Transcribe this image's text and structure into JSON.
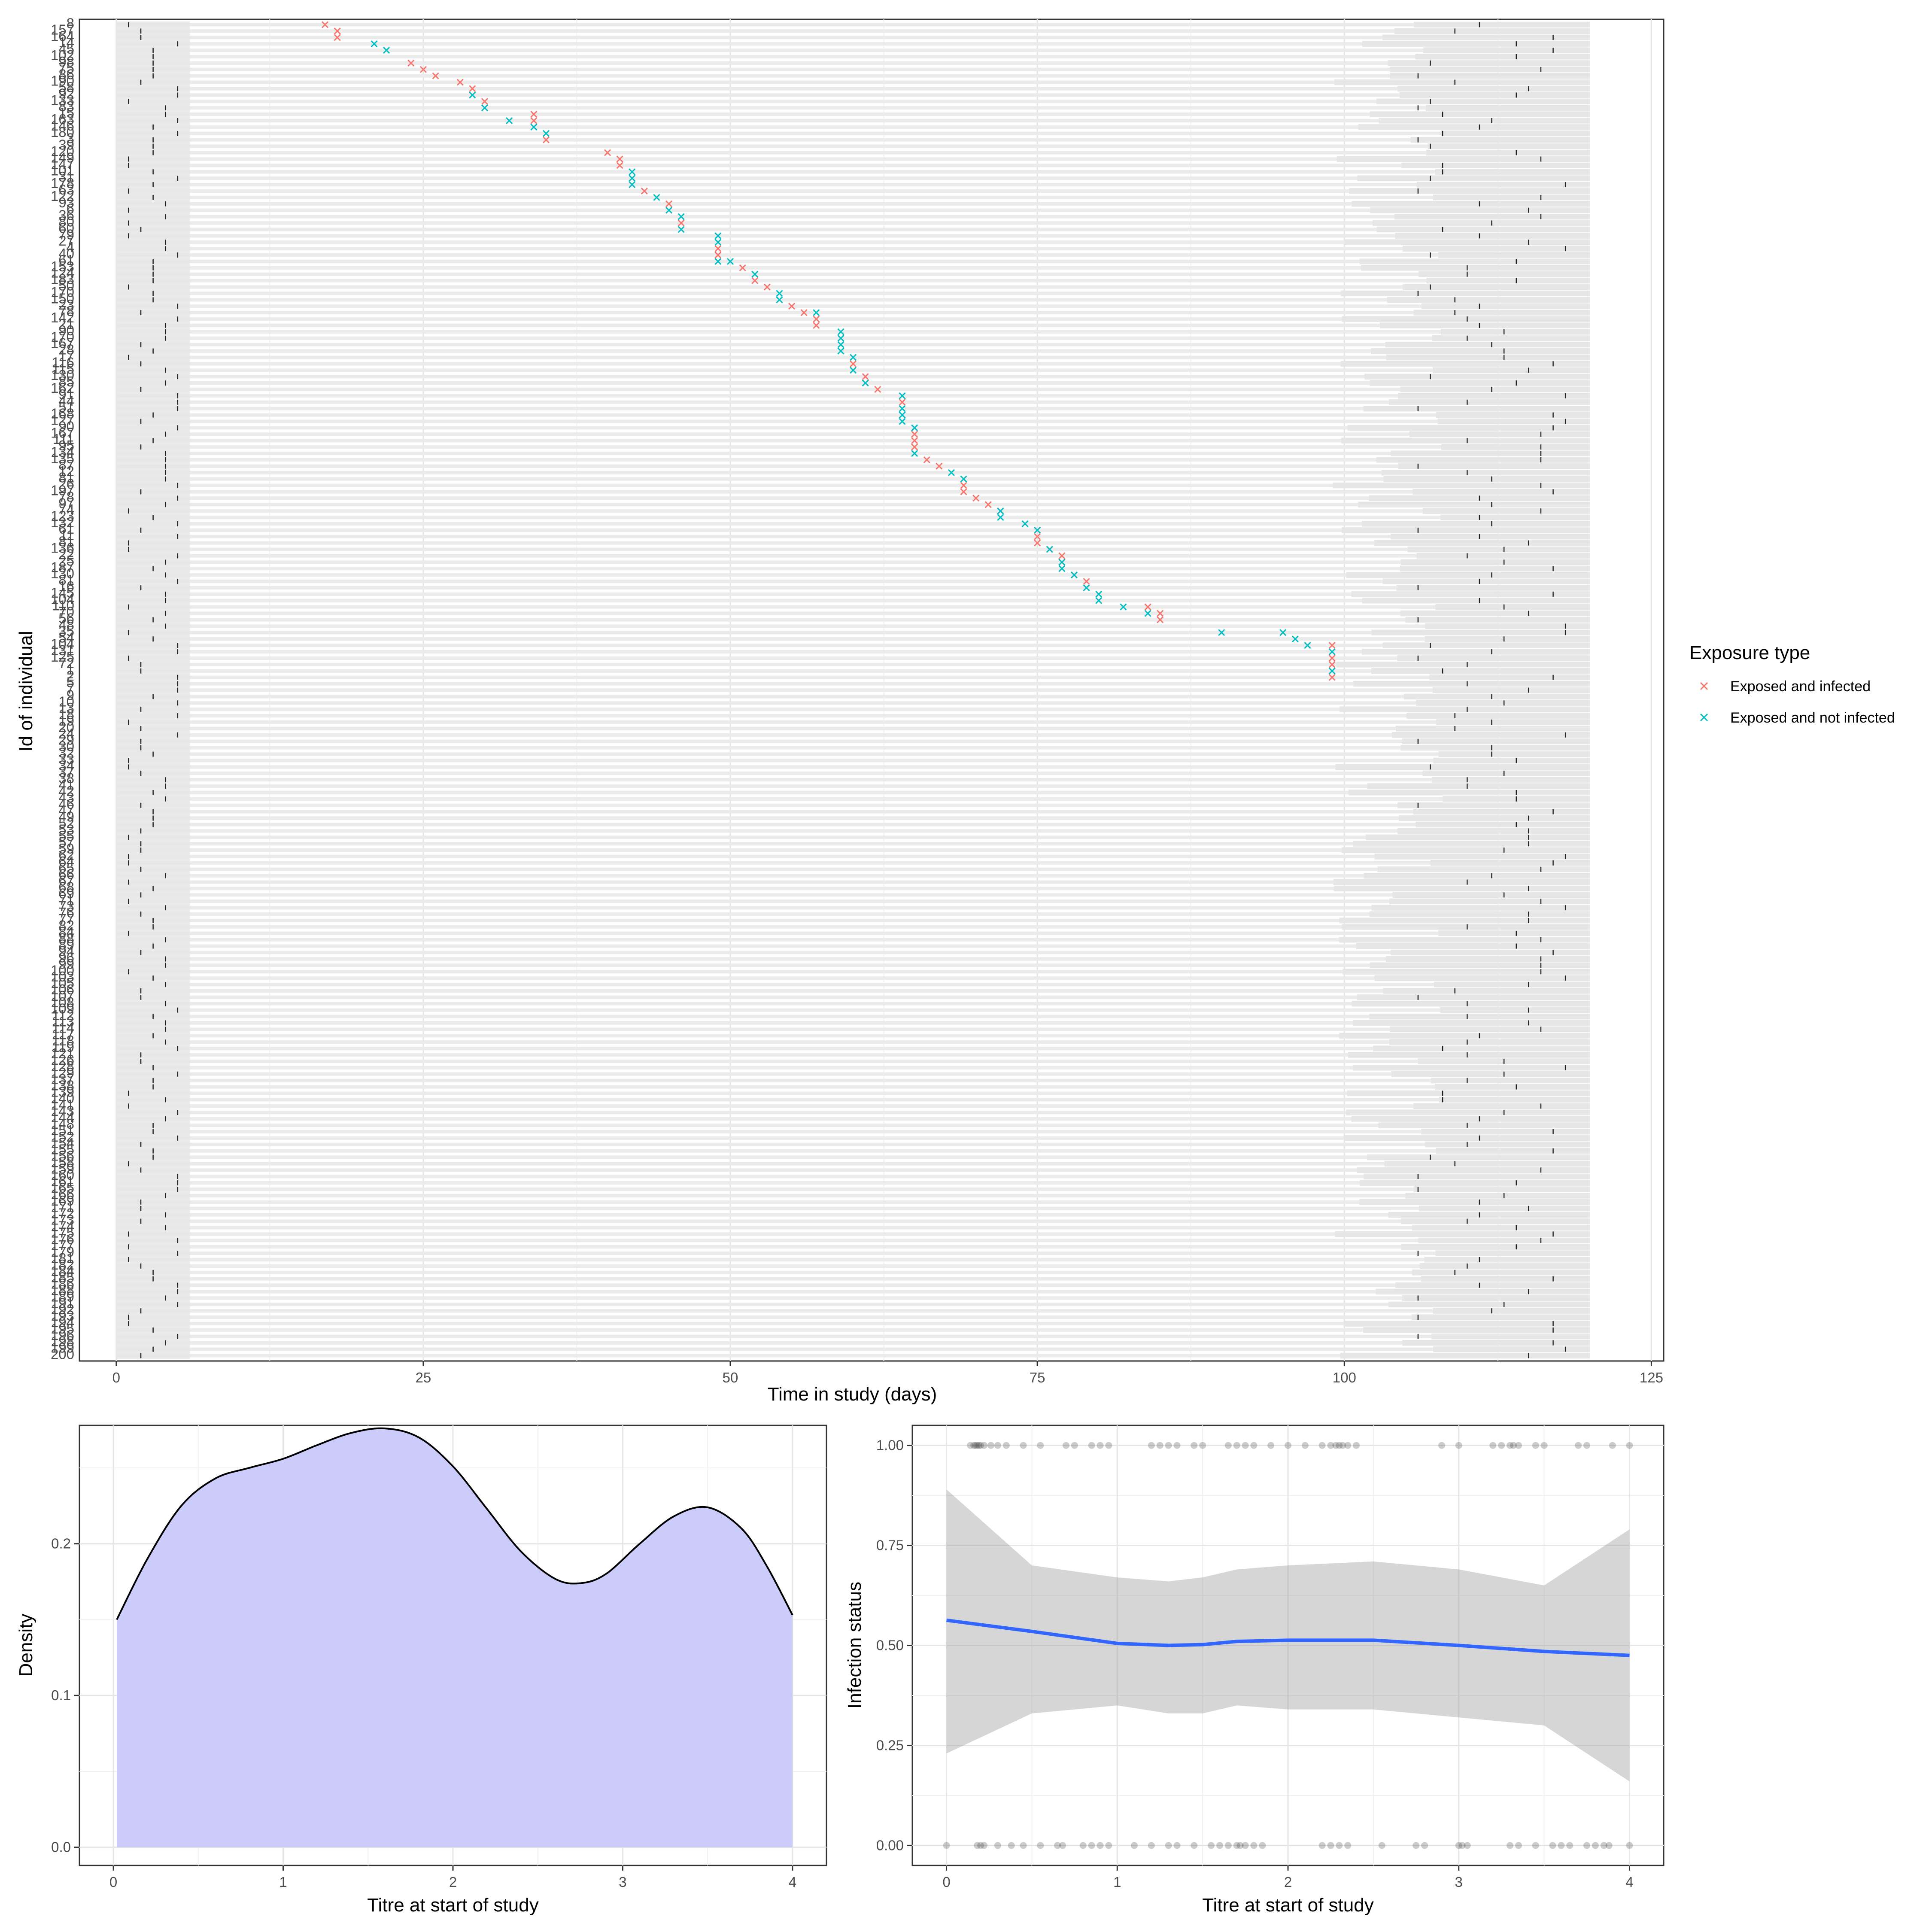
{
  "chart_data": [
    {
      "type": "scatter",
      "title": "",
      "xlabel": "Time in study (days)",
      "ylabel": "Id of individual",
      "xlim": [
        -3,
        126
      ],
      "x_ticks": [
        "0",
        "25",
        "50",
        "75",
        "100",
        "125"
      ],
      "background_band_days": {
        "enrolment_start": 0,
        "enrolment_end_typical": 6,
        "followup_start_min": 99,
        "study_end": 120
      },
      "individual_ids": [
        "8",
        "157",
        "164",
        "14",
        "45",
        "102",
        "98",
        "75",
        "86",
        "190",
        "58",
        "92",
        "133",
        "83",
        "15",
        "163",
        "146",
        "180",
        "3",
        "39",
        "120",
        "149",
        "147",
        "101",
        "31",
        "178",
        "63",
        "122",
        "93",
        "6",
        "36",
        "80",
        "60",
        "79",
        "27",
        "4",
        "40",
        "61",
        "153",
        "124",
        "183",
        "50",
        "170",
        "150",
        "23",
        "78",
        "142",
        "21",
        "90",
        "170",
        "167",
        "28",
        "17",
        "116",
        "115",
        "130",
        "85",
        "162",
        "91",
        "44",
        "51",
        "168",
        "127",
        "90",
        "167",
        "111",
        "95",
        "134",
        "135",
        "87",
        "12",
        "81",
        "26",
        "197",
        "78",
        "97",
        "74",
        "123",
        "132",
        "61",
        "11",
        "81",
        "136",
        "22",
        "25",
        "187",
        "130",
        "81",
        "16",
        "145",
        "104",
        "110",
        "70",
        "56",
        "48",
        "35",
        "54",
        "104",
        "131",
        "125",
        "72",
        "1",
        "2",
        "5",
        "7",
        "9",
        "10",
        "13",
        "18",
        "19",
        "20",
        "24",
        "29",
        "30",
        "32",
        "33",
        "34",
        "37",
        "38",
        "41",
        "42",
        "43",
        "46",
        "47",
        "49",
        "52",
        "53",
        "55",
        "57",
        "59",
        "62",
        "64",
        "65",
        "66",
        "67",
        "68",
        "69",
        "71",
        "73",
        "76",
        "77",
        "82",
        "84",
        "88",
        "89",
        "94",
        "96",
        "99",
        "100",
        "103",
        "105",
        "106",
        "107",
        "108",
        "109",
        "112",
        "113",
        "114",
        "117",
        "118",
        "119",
        "121",
        "126",
        "128",
        "129",
        "137",
        "138",
        "139",
        "140",
        "141",
        "143",
        "144",
        "148",
        "151",
        "152",
        "154",
        "155",
        "156",
        "158",
        "159",
        "160",
        "161",
        "165",
        "166",
        "169",
        "171",
        "172",
        "173",
        "174",
        "175",
        "176",
        "177",
        "179",
        "181",
        "182",
        "184",
        "185",
        "186",
        "188",
        "189",
        "191",
        "192",
        "193",
        "194",
        "195",
        "196",
        "198",
        "199",
        "200"
      ],
      "series": [
        {
          "name": "Exposed and infected",
          "color": "#F8766D",
          "points": [
            [
              17,
              1
            ],
            [
              18,
              2
            ],
            [
              18,
              3
            ],
            [
              24,
              7
            ],
            [
              25,
              8
            ],
            [
              26,
              9
            ],
            [
              28,
              10
            ],
            [
              29,
              11
            ],
            [
              30,
              13
            ],
            [
              34,
              15
            ],
            [
              34,
              16
            ],
            [
              35,
              19
            ],
            [
              40,
              21
            ],
            [
              41,
              22
            ],
            [
              41,
              23
            ],
            [
              43,
              27
            ],
            [
              45,
              29
            ],
            [
              46,
              32
            ],
            [
              49,
              36
            ],
            [
              49,
              37
            ],
            [
              51,
              39
            ],
            [
              52,
              41
            ],
            [
              53,
              42
            ],
            [
              55,
              45
            ],
            [
              56,
              46
            ],
            [
              57,
              47
            ],
            [
              57,
              48
            ],
            [
              60,
              54
            ],
            [
              61,
              56
            ],
            [
              62,
              58
            ],
            [
              64,
              60
            ],
            [
              65,
              65
            ],
            [
              65,
              66
            ],
            [
              65,
              67
            ],
            [
              66,
              69
            ],
            [
              67,
              70
            ],
            [
              69,
              73
            ],
            [
              69,
              74
            ],
            [
              70,
              75
            ],
            [
              71,
              76
            ],
            [
              72,
              77
            ],
            [
              75,
              80
            ],
            [
              75,
              81
            ],
            [
              75,
              82
            ],
            [
              76,
              83
            ],
            [
              77,
              84
            ],
            [
              77,
              85
            ],
            [
              78,
              87
            ],
            [
              79,
              88
            ],
            [
              84,
              92
            ],
            [
              85,
              93
            ],
            [
              85,
              94
            ],
            [
              99,
              98
            ],
            [
              99,
              100
            ],
            [
              99,
              101
            ],
            [
              99,
              103
            ]
          ]
        },
        {
          "name": "Exposed and not infected",
          "color": "#00BFC4",
          "points": [
            [
              21,
              4
            ],
            [
              22,
              5
            ],
            [
              29,
              12
            ],
            [
              30,
              14
            ],
            [
              32,
              16
            ],
            [
              34,
              17
            ],
            [
              35,
              18
            ],
            [
              42,
              24
            ],
            [
              42,
              25
            ],
            [
              42,
              26
            ],
            [
              44,
              28
            ],
            [
              45,
              30
            ],
            [
              46,
              31
            ],
            [
              46,
              33
            ],
            [
              49,
              34
            ],
            [
              49,
              35
            ],
            [
              49,
              38
            ],
            [
              50,
              38
            ],
            [
              52,
              40
            ],
            [
              54,
              43
            ],
            [
              54,
              44
            ],
            [
              57,
              46
            ],
            [
              59,
              49
            ],
            [
              59,
              50
            ],
            [
              59,
              51
            ],
            [
              59,
              52
            ],
            [
              60,
              53
            ],
            [
              60,
              55
            ],
            [
              61,
              57
            ],
            [
              64,
              59
            ],
            [
              64,
              61
            ],
            [
              64,
              62
            ],
            [
              64,
              63
            ],
            [
              65,
              64
            ],
            [
              65,
              68
            ],
            [
              68,
              71
            ],
            [
              69,
              72
            ],
            [
              72,
              77
            ],
            [
              72,
              78
            ],
            [
              74,
              79
            ],
            [
              75,
              80
            ],
            [
              76,
              83
            ],
            [
              77,
              85
            ],
            [
              77,
              86
            ],
            [
              78,
              87
            ],
            [
              79,
              89
            ],
            [
              80,
              90
            ],
            [
              80,
              91
            ],
            [
              82,
              92
            ],
            [
              84,
              93
            ],
            [
              90,
              96
            ],
            [
              95,
              96
            ],
            [
              96,
              97
            ],
            [
              97,
              98
            ],
            [
              99,
              99
            ],
            [
              99,
              102
            ]
          ]
        }
      ],
      "legend": {
        "title": "Exposure type",
        "position": "right",
        "entries": [
          "Exposed and infected",
          "Exposed and not infected"
        ]
      }
    },
    {
      "type": "area",
      "title": "",
      "xlabel": "Titre at start of study",
      "ylabel": "Density",
      "xlim": [
        -0.2,
        4.2
      ],
      "ylim": [
        -0.012,
        0.278
      ],
      "x_ticks": [
        "0",
        "1",
        "2",
        "3",
        "4"
      ],
      "y_ticks": [
        "0.0",
        "0.1",
        "0.2"
      ],
      "fill": "#C9C9FB",
      "x": [
        0.02,
        0.2,
        0.4,
        0.6,
        0.8,
        1.0,
        1.2,
        1.4,
        1.6,
        1.8,
        2.0,
        2.2,
        2.4,
        2.6,
        2.75,
        2.9,
        3.1,
        3.3,
        3.5,
        3.7,
        3.85,
        4.0
      ],
      "values": [
        0.15,
        0.19,
        0.225,
        0.243,
        0.25,
        0.256,
        0.265,
        0.273,
        0.276,
        0.27,
        0.251,
        0.223,
        0.195,
        0.177,
        0.174,
        0.18,
        0.2,
        0.218,
        0.224,
        0.21,
        0.185,
        0.153
      ]
    },
    {
      "type": "scatter",
      "title": "",
      "xlabel": "Titre at start of study",
      "ylabel": "Infection status",
      "xlim": [
        -0.2,
        4.2
      ],
      "ylim": [
        -0.05,
        1.05
      ],
      "x_ticks": [
        "0",
        "1",
        "2",
        "3",
        "4"
      ],
      "y_ticks": [
        "0.00",
        "0.25",
        "0.50",
        "0.75",
        "1.00"
      ],
      "points_infected_x": [
        0.14,
        0.16,
        0.17,
        0.18,
        0.19,
        0.2,
        0.22,
        0.26,
        0.3,
        0.35,
        0.45,
        0.55,
        0.7,
        0.75,
        0.85,
        0.9,
        0.95,
        1.2,
        1.25,
        1.3,
        1.35,
        1.45,
        1.5,
        1.65,
        1.7,
        1.75,
        1.8,
        1.9,
        2.0,
        2.1,
        2.2,
        2.25,
        2.28,
        2.3,
        2.32,
        2.35,
        2.4,
        2.9,
        3.0,
        3.2,
        3.25,
        3.3,
        3.32,
        3.35,
        3.45,
        3.5,
        3.7,
        3.75,
        3.9,
        4.0
      ],
      "points_not_infected_x": [
        0.0,
        0.18,
        0.2,
        0.22,
        0.3,
        0.38,
        0.45,
        0.55,
        0.65,
        0.68,
        0.8,
        0.85,
        0.9,
        0.95,
        1.1,
        1.2,
        1.3,
        1.35,
        1.45,
        1.55,
        1.6,
        1.65,
        1.7,
        1.72,
        1.75,
        1.8,
        1.85,
        2.2,
        2.25,
        2.3,
        2.35,
        2.55,
        2.75,
        2.8,
        3.0,
        3.02,
        3.05,
        3.3,
        3.35,
        3.45,
        3.55,
        3.6,
        3.65,
        3.75,
        3.8,
        3.85,
        3.88,
        4.0
      ],
      "smooth_line": {
        "color": "#3366FF",
        "x": [
          0.0,
          0.5,
          1.0,
          1.3,
          1.5,
          1.7,
          2.0,
          2.5,
          3.0,
          3.5,
          4.0
        ],
        "values": [
          0.563,
          0.535,
          0.505,
          0.5,
          0.502,
          0.51,
          0.513,
          0.513,
          0.5,
          0.485,
          0.475
        ],
        "ci_lower": [
          0.23,
          0.33,
          0.35,
          0.33,
          0.33,
          0.35,
          0.34,
          0.34,
          0.32,
          0.3,
          0.16
        ],
        "ci_upper": [
          0.89,
          0.7,
          0.67,
          0.66,
          0.67,
          0.69,
          0.7,
          0.71,
          0.69,
          0.65,
          0.79
        ]
      }
    }
  ]
}
